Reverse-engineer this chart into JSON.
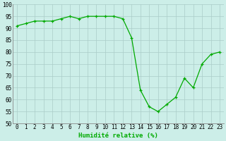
{
  "x": [
    0,
    1,
    2,
    3,
    4,
    5,
    6,
    7,
    8,
    9,
    10,
    11,
    12,
    13,
    14,
    15,
    16,
    17,
    18,
    19,
    20,
    21,
    22,
    23
  ],
  "y": [
    91,
    92,
    93,
    93,
    93,
    94,
    95,
    94,
    95,
    95,
    95,
    95,
    94,
    86,
    64,
    57,
    55,
    58,
    61,
    69,
    65,
    75,
    79,
    80
  ],
  "line_color": "#00aa00",
  "marker": "+",
  "marker_color": "#00aa00",
  "bg_color": "#cceee8",
  "grid_color": "#aaccc8",
  "xlabel": "Humidité relative (%)",
  "xlabel_color": "#00aa00",
  "ylim": [
    50,
    100
  ],
  "xlim": [
    -0.5,
    23.5
  ],
  "yticks": [
    50,
    55,
    60,
    65,
    70,
    75,
    80,
    85,
    90,
    95,
    100
  ],
  "xticks": [
    0,
    1,
    2,
    3,
    4,
    5,
    6,
    7,
    8,
    9,
    10,
    11,
    12,
    13,
    14,
    15,
    16,
    17,
    18,
    19,
    20,
    21,
    22,
    23
  ],
  "tick_fontsize": 5.5,
  "xlabel_fontsize": 6.5,
  "xlabel_fontweight": "bold",
  "linewidth": 0.9,
  "markersize": 3.5
}
